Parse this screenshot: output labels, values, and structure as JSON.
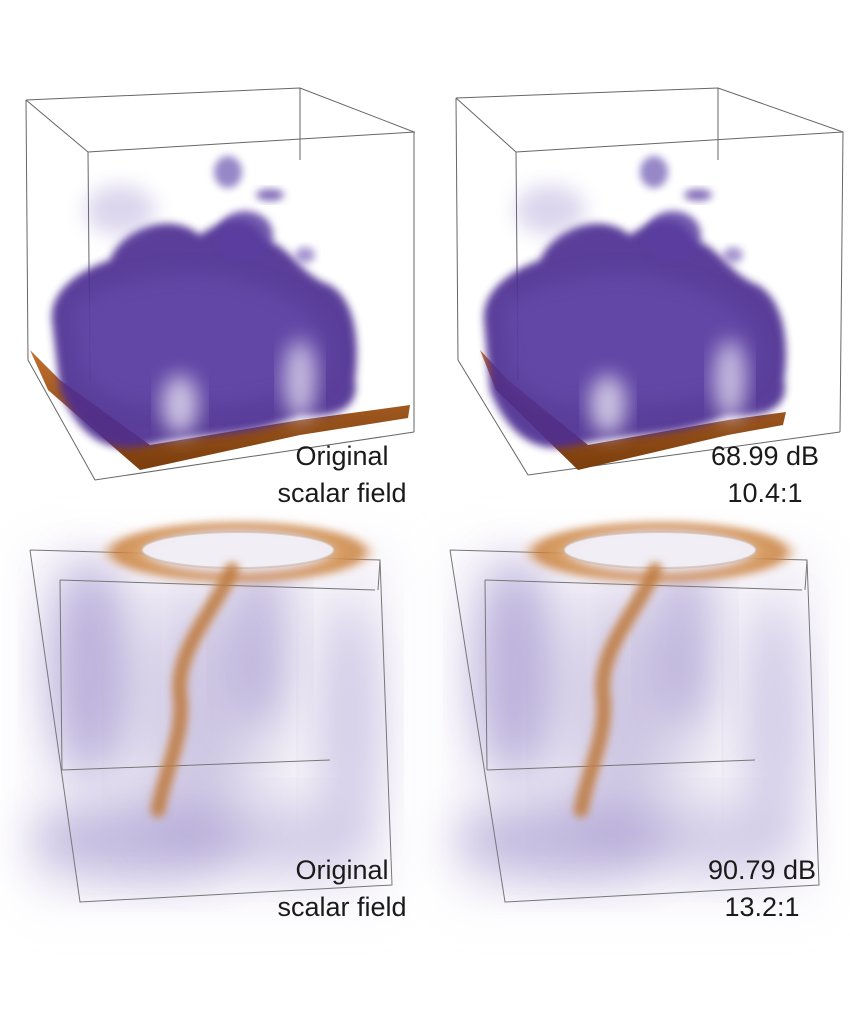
{
  "panels": [
    {
      "id": "top-left",
      "caption_line1": "Original",
      "caption_line2": "scalar field"
    },
    {
      "id": "top-right",
      "caption_line1": "68.99 dB",
      "caption_line2": "10.4:1"
    },
    {
      "id": "bottom-left",
      "caption_line1": "Original",
      "caption_line2": "scalar field"
    },
    {
      "id": "bottom-right",
      "caption_line1": "90.79 dB",
      "caption_line2": "13.2:1"
    }
  ],
  "colors": {
    "purple_dark": "#4b2d8a",
    "purple_mid": "#6a4fb0",
    "purple_light": "#b8acd8",
    "orange_dark": "#8a4a12",
    "orange_light": "#e0a060",
    "box_line": "#555555"
  }
}
